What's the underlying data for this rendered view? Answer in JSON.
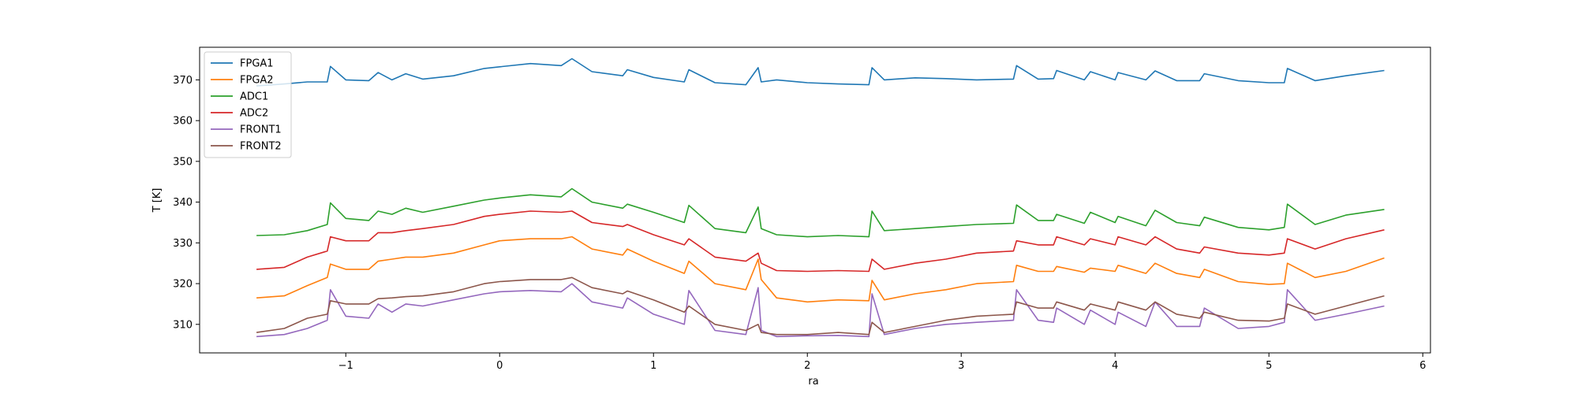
{
  "chart_data": {
    "type": "line",
    "title": "",
    "xlabel": "ra",
    "ylabel": "T [K]",
    "xlim": [
      -1.95,
      6.05
    ],
    "ylim": [
      303,
      378
    ],
    "xticks": [
      -1,
      0,
      1,
      2,
      3,
      4,
      5,
      6
    ],
    "xtick_labels": [
      "−1",
      "0",
      "1",
      "2",
      "3",
      "4",
      "5",
      "6"
    ],
    "yticks": [
      310,
      320,
      330,
      340,
      350,
      360,
      370
    ],
    "ytick_labels": [
      "310",
      "320",
      "330",
      "340",
      "350",
      "360",
      "370"
    ],
    "grid": false,
    "legend_position": "top-left",
    "x": [
      -1.58,
      -1.4,
      -1.25,
      -1.12,
      -1.1,
      -1.0,
      -0.85,
      -0.79,
      -0.7,
      -0.61,
      -0.5,
      -0.3,
      -0.1,
      0.0,
      0.2,
      0.4,
      0.47,
      0.6,
      0.8,
      0.83,
      1.0,
      1.2,
      1.23,
      1.4,
      1.6,
      1.68,
      1.7,
      1.8,
      2.0,
      2.2,
      2.4,
      2.42,
      2.5,
      2.7,
      2.9,
      3.1,
      3.34,
      3.36,
      3.5,
      3.6,
      3.62,
      3.8,
      3.84,
      4.0,
      4.02,
      4.2,
      4.26,
      4.4,
      4.55,
      4.58,
      4.8,
      5.0,
      5.1,
      5.12,
      5.3,
      5.5,
      5.75
    ],
    "series": [
      {
        "name": "FPGA1",
        "color": "#1f77b4",
        "values": [
          368.5,
          369.0,
          369.5,
          369.5,
          373.3,
          370.0,
          369.8,
          371.8,
          370.0,
          371.5,
          370.2,
          371.0,
          372.8,
          373.2,
          374.0,
          373.5,
          375.2,
          372.0,
          371.0,
          372.5,
          370.6,
          369.5,
          372.5,
          369.3,
          368.8,
          373.0,
          369.5,
          370.0,
          369.3,
          369.0,
          368.8,
          373.0,
          370.0,
          370.5,
          370.3,
          370.0,
          370.2,
          373.5,
          370.2,
          370.3,
          372.3,
          370.0,
          372.0,
          370.0,
          371.8,
          370.0,
          372.2,
          369.8,
          369.8,
          371.5,
          369.8,
          369.3,
          369.3,
          372.8,
          369.8,
          371.0,
          372.3
        ]
      },
      {
        "name": "FPGA2",
        "color": "#ff7f0e",
        "values": [
          316.5,
          317.0,
          319.5,
          321.5,
          324.8,
          323.5,
          323.5,
          325.5,
          326.0,
          326.5,
          326.5,
          327.5,
          329.5,
          330.5,
          331.0,
          331.0,
          331.5,
          328.5,
          327.0,
          328.5,
          325.5,
          322.5,
          325.5,
          320.0,
          318.5,
          326.0,
          321.0,
          316.5,
          315.5,
          316.0,
          315.8,
          320.8,
          316.0,
          317.5,
          318.5,
          320.0,
          320.5,
          324.5,
          323.0,
          323.0,
          324.2,
          322.8,
          323.8,
          323.0,
          324.5,
          322.5,
          325.0,
          322.5,
          321.5,
          323.5,
          320.5,
          319.8,
          320.0,
          325.0,
          321.5,
          323.0,
          326.3
        ]
      },
      {
        "name": "ADC1",
        "color": "#2ca02c",
        "values": [
          331.8,
          332.0,
          333.0,
          334.5,
          339.8,
          336.0,
          335.5,
          337.8,
          337.0,
          338.5,
          337.5,
          339.0,
          340.5,
          341.0,
          341.8,
          341.3,
          343.3,
          340.0,
          338.5,
          339.5,
          337.5,
          335.0,
          339.2,
          333.5,
          332.5,
          338.8,
          333.5,
          332.0,
          331.5,
          331.8,
          331.5,
          337.8,
          333.0,
          333.5,
          334.0,
          334.5,
          334.8,
          339.3,
          335.5,
          335.5,
          337.0,
          334.8,
          337.5,
          335.0,
          336.5,
          334.2,
          338.0,
          335.0,
          334.2,
          336.3,
          333.8,
          333.2,
          333.8,
          339.5,
          334.5,
          336.8,
          338.2
        ]
      },
      {
        "name": "ADC2",
        "color": "#d62728",
        "values": [
          323.5,
          324.0,
          326.5,
          328.0,
          331.5,
          330.5,
          330.5,
          332.5,
          332.5,
          333.0,
          333.5,
          334.5,
          336.5,
          337.0,
          337.8,
          337.5,
          337.8,
          335.0,
          334.0,
          334.5,
          332.0,
          329.5,
          331.0,
          326.5,
          325.5,
          327.5,
          325.0,
          323.2,
          323.0,
          323.2,
          323.0,
          326.0,
          323.5,
          325.0,
          326.0,
          327.5,
          328.0,
          330.5,
          329.5,
          329.5,
          331.5,
          329.5,
          331.0,
          329.5,
          331.5,
          329.5,
          331.5,
          328.5,
          327.5,
          329.0,
          327.5,
          327.0,
          327.5,
          331.0,
          328.5,
          331.0,
          333.2
        ]
      },
      {
        "name": "FRONT1",
        "color": "#9467bd",
        "values": [
          307.0,
          307.5,
          309.0,
          311.0,
          318.5,
          312.0,
          311.5,
          315.0,
          313.0,
          315.0,
          314.5,
          316.0,
          317.5,
          318.0,
          318.3,
          318.0,
          320.0,
          315.5,
          314.0,
          316.5,
          312.5,
          310.0,
          318.3,
          308.5,
          307.5,
          319.0,
          308.5,
          307.0,
          307.2,
          307.3,
          307.0,
          317.5,
          307.5,
          309.0,
          310.0,
          310.5,
          311.0,
          318.5,
          311.0,
          310.5,
          314.0,
          310.0,
          313.5,
          310.0,
          313.0,
          309.5,
          315.5,
          309.5,
          309.5,
          314.0,
          309.0,
          309.5,
          310.5,
          318.5,
          311.0,
          312.5,
          314.5
        ]
      },
      {
        "name": "FRONT2",
        "color": "#8c564b",
        "values": [
          308.0,
          309.0,
          311.5,
          312.5,
          315.8,
          315.0,
          315.0,
          316.3,
          316.5,
          316.8,
          317.0,
          318.0,
          320.0,
          320.5,
          321.0,
          321.0,
          321.5,
          319.0,
          317.5,
          318.2,
          316.0,
          313.0,
          314.5,
          310.0,
          308.5,
          310.0,
          308.0,
          307.5,
          307.5,
          308.0,
          307.5,
          310.5,
          308.0,
          309.5,
          311.0,
          312.0,
          312.5,
          315.5,
          314.0,
          314.0,
          315.5,
          313.5,
          315.0,
          313.5,
          315.5,
          313.5,
          315.5,
          312.5,
          311.5,
          313.0,
          311.0,
          310.8,
          311.5,
          315.0,
          312.5,
          314.5,
          317.0
        ]
      }
    ]
  }
}
